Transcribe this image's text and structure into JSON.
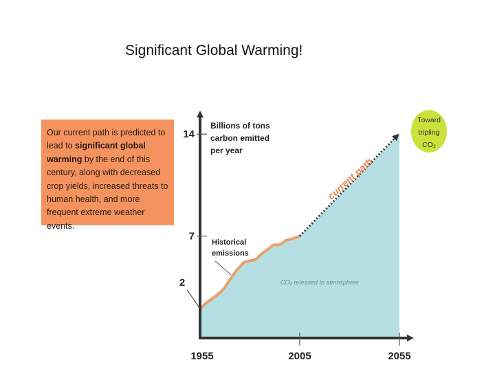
{
  "title": "Significant Global Warming!",
  "note": {
    "text_1": "Our current path is predicted to lead to ",
    "bold_1": "significant global warming",
    "text_2": " by the end of this century, along with decreased crop yields, increased threats to human health, and more frequent extreme weather events."
  },
  "chart_data": {
    "type": "area",
    "title": "",
    "ylabel": "Billions of tons carbon emitted per year",
    "y_label_lines": [
      "Billions of tons",
      "carbon emitted",
      "per year"
    ],
    "xlim": [
      1955,
      2055
    ],
    "ylim": [
      0,
      16
    ],
    "x_ticks": [
      1955,
      2005,
      2055
    ],
    "x_tick_labels": [
      "1955",
      "2005",
      "2055"
    ],
    "y_ticks": [
      2,
      7,
      14
    ],
    "y_tick_labels": [
      "2",
      "7",
      "14"
    ],
    "series": [
      {
        "name": "Historical emissions",
        "style": "solid",
        "color": "#e8a06a",
        "x": [
          1955,
          1958,
          1961,
          1964,
          1967,
          1970,
          1973,
          1975,
          1977,
          1980,
          1983,
          1986,
          1989,
          1992,
          1995,
          1998,
          2001,
          2003,
          2005
        ],
        "y": [
          2.0,
          2.4,
          2.7,
          3.0,
          3.4,
          4.0,
          4.6,
          4.9,
          5.2,
          5.3,
          5.4,
          5.8,
          6.1,
          6.4,
          6.4,
          6.7,
          6.8,
          6.9,
          7.0
        ]
      },
      {
        "name": "current path",
        "style": "dotted",
        "color": "#333333",
        "x": [
          2005,
          2055
        ],
        "y": [
          7.0,
          14.0
        ]
      }
    ],
    "fill": {
      "color": "#b5dfe3",
      "label": "CO₂ released to atmosphere"
    },
    "annotations": {
      "historical_lines": [
        "Historical",
        "emissions"
      ],
      "current_path": "current path",
      "toward_lines": [
        "Toward",
        "tripling",
        "CO₂"
      ]
    },
    "colors": {
      "area": "#b5dfe3",
      "historical": "#e8a06a",
      "note_box": "#f4935f",
      "toward_badge": "#c9e33a",
      "current_path_text": "#e8804a"
    }
  }
}
